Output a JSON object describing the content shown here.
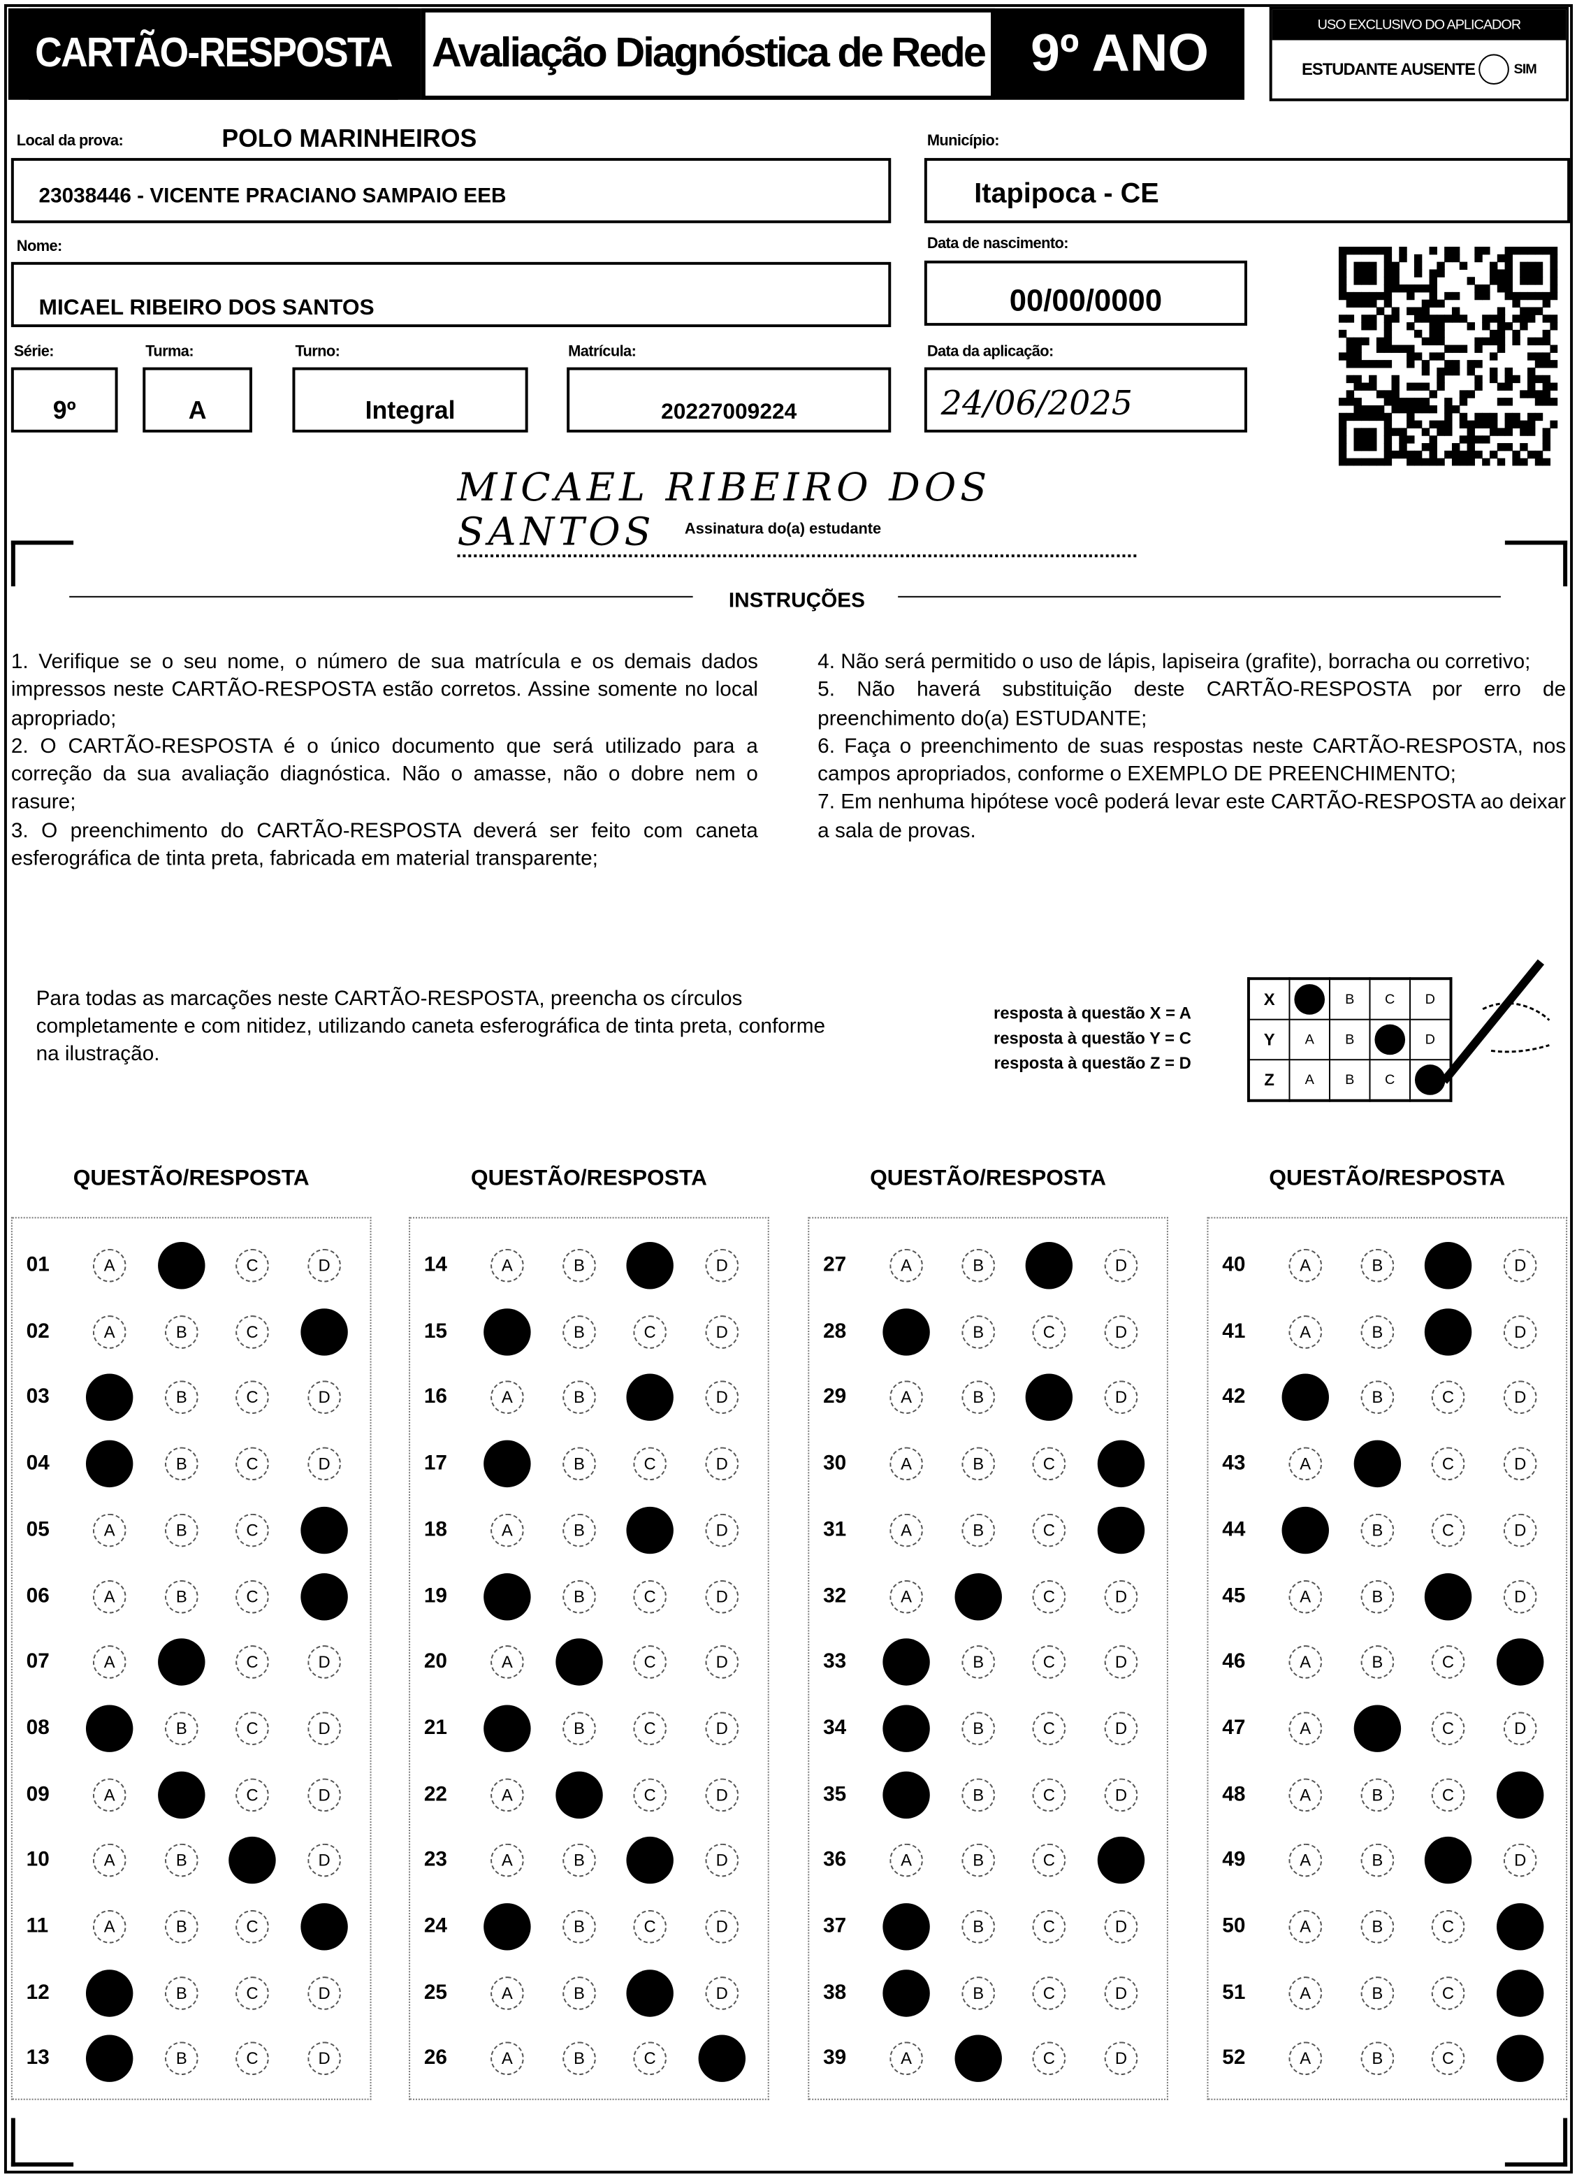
{
  "header": {
    "title": "CARTÃO-RESPOSTA",
    "exam": "Avaliação Diagnóstica de Rede",
    "grade": "9º ANO",
    "applicator_label": "USO EXCLUSIVO DO APLICADOR",
    "absent_label": "ESTUDANTE AUSENTE",
    "absent_option": "SIM"
  },
  "student": {
    "local_label": "Local da prova:",
    "local_value": "POLO MARINHEIROS",
    "school": "23038446 - VICENTE PRACIANO SAMPAIO EEB",
    "municipio_label": "Município:",
    "municipio": "Itapipoca - CE",
    "nome_label": "Nome:",
    "nome": "MICAEL RIBEIRO DOS SANTOS",
    "nasc_label": "Data de nascimento:",
    "nasc": "00/00/0000",
    "serie_label": "Série:",
    "serie": "9º",
    "turma_label": "Turma:",
    "turma": "A",
    "turno_label": "Turno:",
    "turno": "Integral",
    "matricula_label": "Matrícula:",
    "matricula": "20227009224",
    "aplic_label": "Data da aplicação:",
    "aplic": "24/06/2025",
    "signature": "Micael Ribeiro dos santos",
    "signature_label": "Assinatura do(a) estudante"
  },
  "instructions": {
    "title": "INSTRUÇÕES",
    "left": [
      "1. Verifique se o seu nome, o número de sua matrícula e os demais dados impressos neste CARTÃO-RESPOSTA estão corretos. Assine somente no local apropriado;",
      "2. O CARTÃO-RESPOSTA é o único documento que será utilizado para a correção da sua avaliação diagnóstica. Não o amasse, não o dobre nem o rasure;",
      "3. O preenchimento do CARTÃO-RESPOSTA deverá ser feito com caneta esferográfica de tinta preta, fabricada em material transparente;"
    ],
    "right": [
      "4. Não será permitido o uso de lápis, lapiseira (grafite), borracha ou corretivo;",
      "5. Não haverá substituição deste CARTÃO-RESPOSTA por erro de preenchimento do(a) ESTUDANTE;",
      "6. Faça o preenchimento de suas respostas neste CARTÃO-RESPOSTA, nos campos apropriados, conforme o EXEMPLO DE PREENCHIMENTO;",
      "7. Em nenhuma hipótese você poderá levar este CARTÃO-RESPOSTA ao deixar a sala de provas."
    ],
    "fill_note": "Para todas as marcações neste CARTÃO-RESPOSTA, preencha os círculos completamente e com nitidez, utilizando caneta esferográfica de tinta preta, conforme na ilustração.",
    "example_lines": [
      "resposta à questão X = A",
      "resposta à questão Y = C",
      "resposta à questão Z = D"
    ],
    "example_rows": [
      {
        "q": "X",
        "marked": "A"
      },
      {
        "q": "Y",
        "marked": "C"
      },
      {
        "q": "Z",
        "marked": "D"
      }
    ]
  },
  "answers": {
    "column_header": "QUESTÃO/RESPOSTA",
    "options": [
      "A",
      "B",
      "C",
      "D"
    ],
    "items": [
      {
        "n": "01",
        "m": "B"
      },
      {
        "n": "02",
        "m": "D"
      },
      {
        "n": "03",
        "m": "A"
      },
      {
        "n": "04",
        "m": "A"
      },
      {
        "n": "05",
        "m": "D"
      },
      {
        "n": "06",
        "m": "D"
      },
      {
        "n": "07",
        "m": "B"
      },
      {
        "n": "08",
        "m": "A"
      },
      {
        "n": "09",
        "m": "B"
      },
      {
        "n": "10",
        "m": "C"
      },
      {
        "n": "11",
        "m": "D"
      },
      {
        "n": "12",
        "m": "A"
      },
      {
        "n": "13",
        "m": "A"
      },
      {
        "n": "14",
        "m": "C"
      },
      {
        "n": "15",
        "m": "A"
      },
      {
        "n": "16",
        "m": "C"
      },
      {
        "n": "17",
        "m": "A"
      },
      {
        "n": "18",
        "m": "C"
      },
      {
        "n": "19",
        "m": "A"
      },
      {
        "n": "20",
        "m": "B"
      },
      {
        "n": "21",
        "m": "A"
      },
      {
        "n": "22",
        "m": "B"
      },
      {
        "n": "23",
        "m": "C"
      },
      {
        "n": "24",
        "m": "A"
      },
      {
        "n": "25",
        "m": "C"
      },
      {
        "n": "26",
        "m": "D"
      },
      {
        "n": "27",
        "m": "C"
      },
      {
        "n": "28",
        "m": "A"
      },
      {
        "n": "29",
        "m": "C"
      },
      {
        "n": "30",
        "m": "D"
      },
      {
        "n": "31",
        "m": "D"
      },
      {
        "n": "32",
        "m": "B"
      },
      {
        "n": "33",
        "m": "A"
      },
      {
        "n": "34",
        "m": "A"
      },
      {
        "n": "35",
        "m": "A"
      },
      {
        "n": "36",
        "m": "D"
      },
      {
        "n": "37",
        "m": "A"
      },
      {
        "n": "38",
        "m": "A"
      },
      {
        "n": "39",
        "m": "B"
      },
      {
        "n": "40",
        "m": "C"
      },
      {
        "n": "41",
        "m": "C"
      },
      {
        "n": "42",
        "m": "A"
      },
      {
        "n": "43",
        "m": "B"
      },
      {
        "n": "44",
        "m": "A"
      },
      {
        "n": "45",
        "m": "C"
      },
      {
        "n": "46",
        "m": "D"
      },
      {
        "n": "47",
        "m": "B"
      },
      {
        "n": "48",
        "m": "D"
      },
      {
        "n": "49",
        "m": "C"
      },
      {
        "n": "50",
        "m": "D"
      },
      {
        "n": "51",
        "m": "D"
      },
      {
        "n": "52",
        "m": "D"
      }
    ]
  }
}
